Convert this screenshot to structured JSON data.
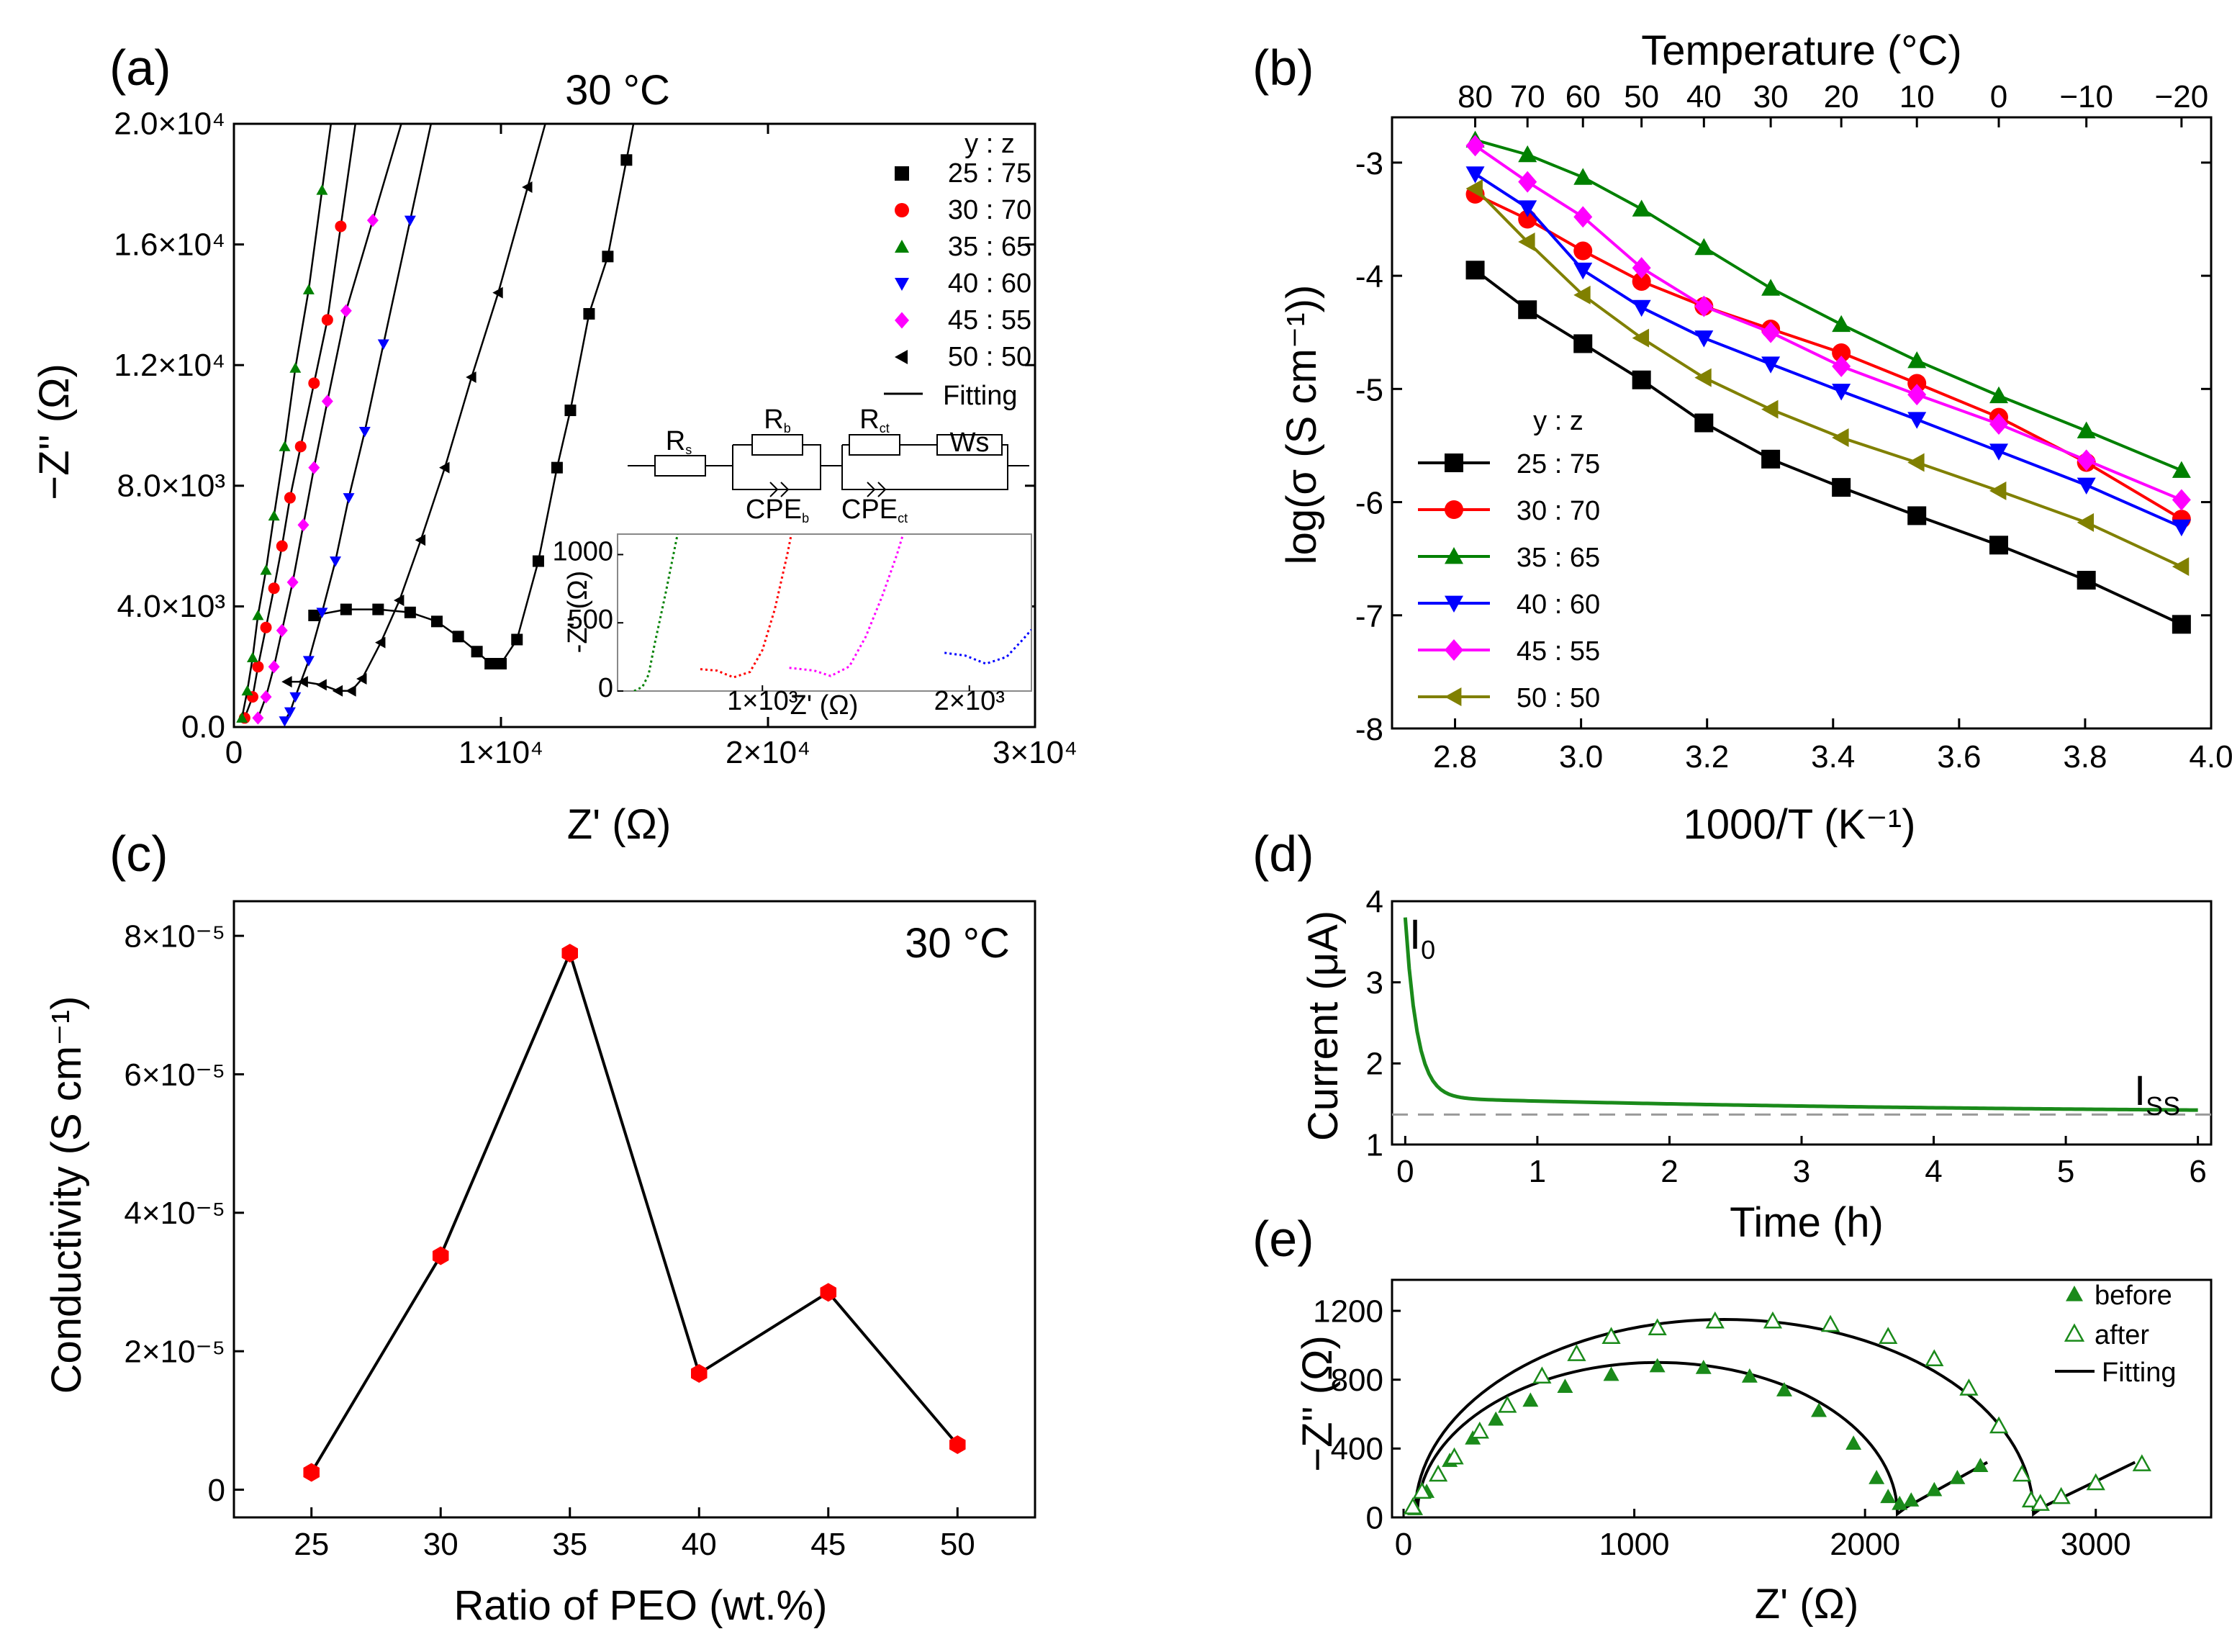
{
  "chart_data": [
    {
      "panel": "(a)",
      "type": "scatter",
      "title": "30 °C",
      "xlabel": "Z' (Ω)",
      "ylabel": "−Z'' (Ω)",
      "xlim": [
        0,
        30000
      ],
      "ylim": [
        0,
        20000
      ],
      "xticks": [
        {
          "value": 0,
          "label": "0"
        },
        {
          "value": 10000,
          "label": "1×10⁴"
        },
        {
          "value": 20000,
          "label": "2×10⁴"
        },
        {
          "value": 30000,
          "label": "3×10⁴"
        }
      ],
      "yticks": [
        {
          "value": 0,
          "label": "0.0"
        },
        {
          "value": 4000,
          "label": "4.0×10³"
        },
        {
          "value": 8000,
          "label": "8.0×10³"
        },
        {
          "value": 12000,
          "label": "1.2×10⁴"
        },
        {
          "value": 16000,
          "label": "1.6×10⁴"
        },
        {
          "value": 20000,
          "label": "2.0×10⁴"
        }
      ],
      "legend_title": "y : z",
      "fit_label": "Fitting",
      "series": [
        {
          "name": "25 : 75",
          "color": "#000000",
          "marker": "square",
          "x": [
            3000,
            4200,
            5400,
            6600,
            7600,
            8400,
            9100,
            9600,
            10000,
            10600,
            11400,
            12100,
            12600,
            13300,
            14000,
            14700
          ],
          "y": [
            3700,
            3900,
            3900,
            3800,
            3500,
            3000,
            2500,
            2100,
            2100,
            2900,
            5500,
            8600,
            10500,
            13700,
            15600,
            18800
          ]
        },
        {
          "name": "30 : 70",
          "color": "#ff0000",
          "marker": "circle",
          "x": [
            400,
            700,
            900,
            1200,
            1500,
            1800,
            2100,
            2500,
            3000,
            3500,
            4000
          ],
          "y": [
            300,
            1000,
            2000,
            3300,
            4600,
            6000,
            7600,
            9300,
            11400,
            13500,
            16600
          ]
        },
        {
          "name": "35 : 65",
          "color": "#008000",
          "marker": "triangle-up",
          "x": [
            300,
            500,
            700,
            900,
            1200,
            1500,
            1900,
            2300,
            2800,
            3300
          ],
          "y": [
            300,
            1200,
            2300,
            3700,
            5200,
            7000,
            9300,
            11900,
            14500,
            17800
          ]
        },
        {
          "name": "40 : 60",
          "color": "#0000ff",
          "marker": "triangle-down",
          "x": [
            1900,
            2100,
            2300,
            2800,
            3300,
            3800,
            4300,
            4900,
            5600,
            6600
          ],
          "y": [
            200,
            500,
            1000,
            2200,
            3800,
            5500,
            7600,
            9800,
            12700,
            16800
          ]
        },
        {
          "name": "45 : 55",
          "color": "#ff00ff",
          "marker": "diamond",
          "x": [
            900,
            1200,
            1500,
            1800,
            2200,
            2600,
            3000,
            3500,
            4200,
            5200
          ],
          "y": [
            300,
            1000,
            2000,
            3200,
            4800,
            6700,
            8600,
            10800,
            13800,
            16800
          ]
        },
        {
          "name": "50 : 50",
          "color": "#000000",
          "marker": "triangle-left",
          "x": [
            2000,
            2600,
            3300,
            3900,
            4400,
            4800,
            5500,
            6200,
            7000,
            7900,
            8900,
            9900,
            11000
          ],
          "y": [
            1500,
            1500,
            1400,
            1200,
            1200,
            1600,
            2800,
            4200,
            6200,
            8600,
            11600,
            14400,
            17900
          ]
        }
      ],
      "inset": {
        "xlabel": "Z' (Ω)",
        "ylabel": "-Z'' (Ω)",
        "xlim": [
          300,
          2300
        ],
        "ylim": [
          0,
          1150
        ],
        "xticks": [
          {
            "value": 1000,
            "label": "1×10³"
          },
          {
            "value": 2000,
            "label": "2×10³"
          }
        ],
        "yticks": [
          {
            "value": 0,
            "label": "0"
          },
          {
            "value": 500,
            "label": "500"
          },
          {
            "value": 1000,
            "label": "1000"
          }
        ],
        "circuit_labels": [
          "Rs",
          "Rb",
          "Rct",
          "Ws",
          "CPEb",
          "CPEct"
        ]
      }
    },
    {
      "panel": "(b)",
      "type": "line",
      "xlabel": "1000/T (K⁻¹)",
      "ylabel": "log(σ (S cm⁻¹))",
      "top_xlabel": "Temperature (°C)",
      "xlim": [
        2.7,
        4.0
      ],
      "ylim": [
        -8,
        -2.6
      ],
      "xticks": [
        {
          "value": 2.8,
          "label": "2.8"
        },
        {
          "value": 3.0,
          "label": "3.0"
        },
        {
          "value": 3.2,
          "label": "3.2"
        },
        {
          "value": 3.4,
          "label": "3.4"
        },
        {
          "value": 3.6,
          "label": "3.6"
        },
        {
          "value": 3.8,
          "label": "3.8"
        },
        {
          "value": 4.0,
          "label": "4.0"
        }
      ],
      "yticks": [
        {
          "value": -3,
          "label": "-3"
        },
        {
          "value": -4,
          "label": "-4"
        },
        {
          "value": -5,
          "label": "-5"
        },
        {
          "value": -6,
          "label": "-6"
        },
        {
          "value": -7,
          "label": "-7"
        },
        {
          "value": -8,
          "label": "-8"
        }
      ],
      "top_ticks": [
        {
          "value": 2.832,
          "label": "80"
        },
        {
          "value": 2.915,
          "label": "70"
        },
        {
          "value": 3.003,
          "label": "60"
        },
        {
          "value": 3.096,
          "label": "50"
        },
        {
          "value": 3.195,
          "label": "40"
        },
        {
          "value": 3.301,
          "label": "30"
        },
        {
          "value": 3.413,
          "label": "20"
        },
        {
          "value": 3.533,
          "label": "10"
        },
        {
          "value": 3.663,
          "label": "0"
        },
        {
          "value": 3.802,
          "label": "−10"
        },
        {
          "value": 3.953,
          "label": "−20"
        }
      ],
      "x": [
        2.832,
        2.915,
        3.003,
        3.096,
        3.195,
        3.301,
        3.413,
        3.533,
        3.663,
        3.802,
        3.953
      ],
      "legend_title": "y : z",
      "series": [
        {
          "name": "25 : 75",
          "color": "#000000",
          "marker": "square",
          "values": [
            -3.95,
            -4.3,
            -4.6,
            -4.92,
            -5.3,
            -5.62,
            -5.87,
            -6.12,
            -6.38,
            -6.69,
            -7.08
          ]
        },
        {
          "name": "30 : 70",
          "color": "#ff0000",
          "marker": "circle",
          "values": [
            -3.28,
            -3.5,
            -3.78,
            -4.05,
            -4.27,
            -4.47,
            -4.68,
            -4.95,
            -5.25,
            -5.65,
            -6.15
          ]
        },
        {
          "name": "35 : 65",
          "color": "#008000",
          "marker": "triangle-up",
          "values": [
            -2.8,
            -2.93,
            -3.13,
            -3.41,
            -3.75,
            -4.11,
            -4.43,
            -4.75,
            -5.06,
            -5.37,
            -5.72
          ]
        },
        {
          "name": "40 : 60",
          "color": "#0000ff",
          "marker": "triangle-down",
          "values": [
            -3.1,
            -3.4,
            -3.95,
            -4.28,
            -4.55,
            -4.78,
            -5.02,
            -5.27,
            -5.55,
            -5.85,
            -6.22
          ]
        },
        {
          "name": "45 : 55",
          "color": "#ff00ff",
          "marker": "diamond",
          "values": [
            -2.85,
            -3.17,
            -3.48,
            -3.93,
            -4.27,
            -4.5,
            -4.8,
            -5.05,
            -5.31,
            -5.63,
            -5.98
          ]
        },
        {
          "name": "50 : 50",
          "color": "#808000",
          "marker": "triangle-left",
          "values": [
            -3.23,
            -3.7,
            -4.17,
            -4.55,
            -4.9,
            -5.18,
            -5.43,
            -5.65,
            -5.9,
            -6.18,
            -6.57
          ]
        }
      ]
    },
    {
      "panel": "(c)",
      "type": "line",
      "title": "30 °C",
      "xlabel": "Ratio of PEO (wt.%)",
      "ylabel": "Conductivity (S cm⁻¹)",
      "xlim": [
        22,
        53
      ],
      "ylim": [
        -4e-06,
        8.5e-05
      ],
      "xticks": [
        {
          "value": 25,
          "label": "25"
        },
        {
          "value": 30,
          "label": "30"
        },
        {
          "value": 35,
          "label": "35"
        },
        {
          "value": 40,
          "label": "40"
        },
        {
          "value": 45,
          "label": "45"
        },
        {
          "value": 50,
          "label": "50"
        }
      ],
      "yticks": [
        {
          "value": 0,
          "label": "0"
        },
        {
          "value": 2e-05,
          "label": "2×10⁻⁵"
        },
        {
          "value": 4e-05,
          "label": "4×10⁻⁵"
        },
        {
          "value": 6e-05,
          "label": "6×10⁻⁵"
        },
        {
          "value": 8e-05,
          "label": "8×10⁻⁵"
        }
      ],
      "series": [
        {
          "name": "conductivity",
          "color": "#ff0000",
          "marker": "hexagon",
          "x": [
            25,
            30,
            35,
            40,
            45,
            50
          ],
          "values": [
            2.5e-06,
            3.38e-05,
            7.75e-05,
            1.68e-05,
            2.85e-05,
            6.5e-06
          ]
        }
      ]
    },
    {
      "panel": "(d)",
      "type": "line",
      "xlabel": "Time (h)",
      "ylabel": "Current (μA)",
      "xlim": [
        -0.1,
        6.1
      ],
      "ylim": [
        1,
        4
      ],
      "xticks": [
        {
          "value": 0,
          "label": "0"
        },
        {
          "value": 1,
          "label": "1"
        },
        {
          "value": 2,
          "label": "2"
        },
        {
          "value": 3,
          "label": "3"
        },
        {
          "value": 4,
          "label": "4"
        },
        {
          "value": 5,
          "label": "5"
        },
        {
          "value": 6,
          "label": "6"
        }
      ],
      "yticks": [
        {
          "value": 1,
          "label": "1"
        },
        {
          "value": 2,
          "label": "2"
        },
        {
          "value": 3,
          "label": "3"
        },
        {
          "value": 4,
          "label": "4"
        }
      ],
      "annotations": [
        {
          "text": "I",
          "sub": "0"
        },
        {
          "text": "I",
          "sub": "SS"
        }
      ],
      "baseline": 1.37,
      "series": [
        {
          "name": "current",
          "color": "#1a8a1a",
          "x": [
            0,
            0.02,
            0.05,
            0.1,
            0.15,
            0.2,
            0.3,
            0.4,
            0.5,
            0.7,
            1,
            1.5,
            2,
            3,
            4,
            5,
            6
          ],
          "values": [
            3.8,
            3.1,
            2.65,
            2.25,
            2.02,
            1.88,
            1.73,
            1.65,
            1.6,
            1.56,
            1.53,
            1.5,
            1.48,
            1.45,
            1.43,
            1.41,
            1.39
          ]
        }
      ]
    },
    {
      "panel": "(e)",
      "type": "scatter",
      "xlabel": "Z' (Ω)",
      "ylabel": "−Z'' (Ω)",
      "xlim": [
        -50,
        3500
      ],
      "ylim": [
        0,
        1380
      ],
      "xticks": [
        {
          "value": 0,
          "label": "0"
        },
        {
          "value": 1000,
          "label": "1000"
        },
        {
          "value": 2000,
          "label": "2000"
        },
        {
          "value": 3000,
          "label": "3000"
        }
      ],
      "yticks": [
        {
          "value": 0,
          "label": "0"
        },
        {
          "value": 400,
          "label": "400"
        },
        {
          "value": 800,
          "label": "800"
        },
        {
          "value": 1200,
          "label": "1200"
        }
      ],
      "legend": [
        "before",
        "after",
        "Fitting"
      ],
      "series": [
        {
          "name": "before",
          "color": "#1a8a1a",
          "marker": "triangle-filled",
          "x": [
            50,
            100,
            150,
            200,
            300,
            400,
            550,
            700,
            900,
            1100,
            1300,
            1500,
            1650,
            1800,
            1950,
            2050,
            2100,
            2150,
            2200,
            2300,
            2400,
            2500
          ],
          "values": [
            50,
            150,
            250,
            330,
            460,
            570,
            680,
            760,
            830,
            880,
            870,
            820,
            740,
            620,
            430,
            230,
            120,
            80,
            100,
            160,
            230,
            300
          ]
        },
        {
          "name": "after",
          "color": "#1a8a1a",
          "marker": "triangle-open",
          "x": [
            40,
            80,
            150,
            220,
            330,
            450,
            600,
            750,
            900,
            1100,
            1350,
            1600,
            1850,
            2100,
            2300,
            2450,
            2580,
            2680,
            2720,
            2760,
            2850,
            3000,
            3200
          ],
          "values": [
            60,
            150,
            250,
            350,
            500,
            650,
            820,
            950,
            1050,
            1100,
            1140,
            1140,
            1120,
            1050,
            920,
            750,
            530,
            250,
            100,
            80,
            120,
            200,
            310
          ]
        }
      ]
    }
  ]
}
